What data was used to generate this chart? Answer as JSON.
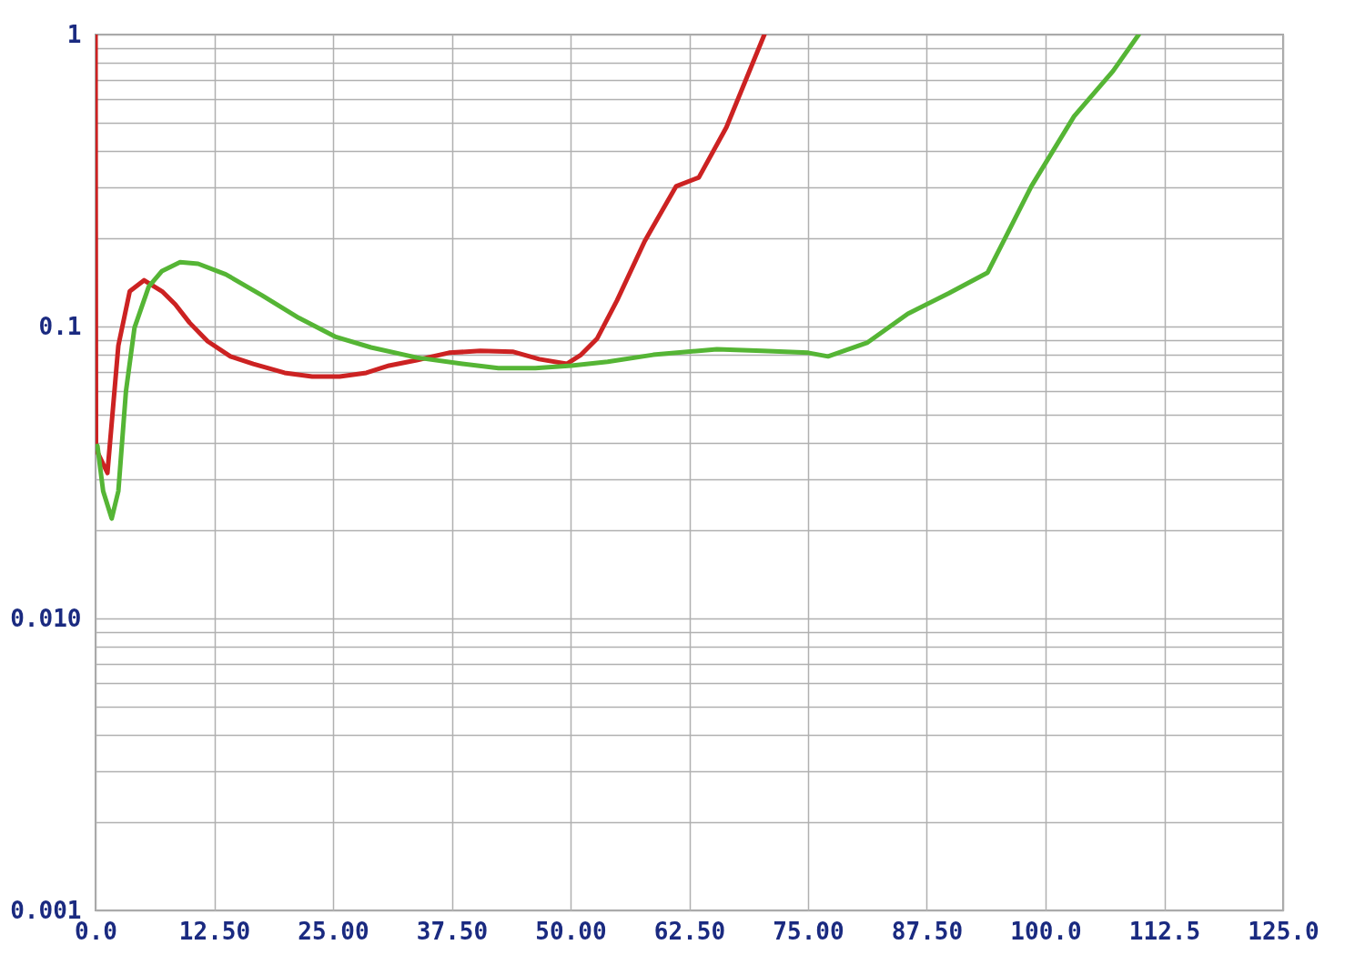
{
  "chart_data": {
    "type": "line",
    "log": "y",
    "grid": true,
    "line_style": "solid",
    "marker": "none",
    "xlim": [
      0,
      125
    ],
    "ylim": [
      0.001,
      1
    ],
    "xticks": [
      {
        "value": 0,
        "label": "0.0"
      },
      {
        "value": 12.5,
        "label": "12.50"
      },
      {
        "value": 25,
        "label": "25.00"
      },
      {
        "value": 37.5,
        "label": "37.50"
      },
      {
        "value": 50,
        "label": "50.00"
      },
      {
        "value": 62.5,
        "label": "62.50"
      },
      {
        "value": 75,
        "label": "75.00"
      },
      {
        "value": 87.5,
        "label": "87.50"
      },
      {
        "value": 100,
        "label": "100.0"
      },
      {
        "value": 112.5,
        "label": "112.5"
      },
      {
        "value": 125,
        "label": "125.0"
      }
    ],
    "yticks": [
      0.001,
      {
        "value": 0.002,
        "label": null
      },
      {
        "value": 0.003,
        "label": null
      },
      {
        "value": 0.004,
        "label": null
      },
      {
        "value": 0.005,
        "label": null
      },
      {
        "value": 0.006,
        "label": null
      },
      {
        "value": 0.007,
        "label": null
      },
      {
        "value": 0.008,
        "label": null
      },
      {
        "value": 0.009,
        "label": null
      },
      {
        "value": 0.01,
        "label": "0.010"
      },
      {
        "value": 0.02,
        "label": null
      },
      {
        "value": 0.03,
        "label": null
      },
      {
        "value": 0.04,
        "label": null
      },
      {
        "value": 0.05,
        "label": null
      },
      {
        "value": 0.06,
        "label": null
      },
      {
        "value": 0.07,
        "label": null
      },
      {
        "value": 0.08,
        "label": null
      },
      {
        "value": 0.09,
        "label": null
      },
      0.1,
      {
        "value": 0.2,
        "label": null
      },
      {
        "value": 0.3,
        "label": null
      },
      {
        "value": 0.4,
        "label": null
      },
      {
        "value": 0.5,
        "label": null
      },
      {
        "value": 0.6,
        "label": null
      },
      {
        "value": 0.7,
        "label": null
      },
      {
        "value": 0.8,
        "label": null
      },
      {
        "value": 0.9,
        "label": null
      },
      1
    ],
    "series": [
      {
        "color": "#cc2222",
        "x": [
          0,
          0.05,
          1.25,
          2.4,
          3.6,
          5.1,
          7.0,
          8.4,
          9.9,
          11.8,
          14.2,
          16.6,
          19.9,
          22.8,
          25.7,
          28.5,
          30.9,
          33.8,
          37.2,
          40.5,
          43.9,
          46.7,
          49.6,
          51.1,
          52.8,
          54.9,
          57.8,
          61.1,
          63.5,
          66.4,
          70.4
        ],
        "values": [
          1,
          0.038,
          0.0315,
          0.086,
          0.132,
          0.144,
          0.132,
          0.119,
          0.103,
          0.089,
          0.079,
          0.0745,
          0.0694,
          0.0674,
          0.0674,
          0.0694,
          0.0735,
          0.0767,
          0.0813,
          0.0825,
          0.082,
          0.0773,
          0.0745,
          0.08,
          0.091,
          0.123,
          0.196,
          0.302,
          0.324,
          0.481,
          1
        ]
      },
      {
        "color": "#55b535",
        "x": [
          0.2,
          0.8,
          1.7,
          2.4,
          3.2,
          4.1,
          5.6,
          7.0,
          8.9,
          10.8,
          13.7,
          17.5,
          21.4,
          25.2,
          29.0,
          33.8,
          38.6,
          42.4,
          46.3,
          50.1,
          53.9,
          58.7,
          65.4,
          70.2,
          75.0,
          77.1,
          81.2,
          85.5,
          89.8,
          93.9,
          98.5,
          103.0,
          107.1,
          109.8
        ],
        "values": [
          0.039,
          0.0273,
          0.022,
          0.0273,
          0.06,
          0.099,
          0.137,
          0.155,
          0.166,
          0.164,
          0.151,
          0.128,
          0.107,
          0.0924,
          0.0848,
          0.0783,
          0.0745,
          0.072,
          0.072,
          0.0735,
          0.0757,
          0.08,
          0.0836,
          0.0825,
          0.0813,
          0.079,
          0.0879,
          0.1106,
          0.13,
          0.153,
          0.302,
          0.525,
          0.75,
          1
        ]
      }
    ]
  }
}
